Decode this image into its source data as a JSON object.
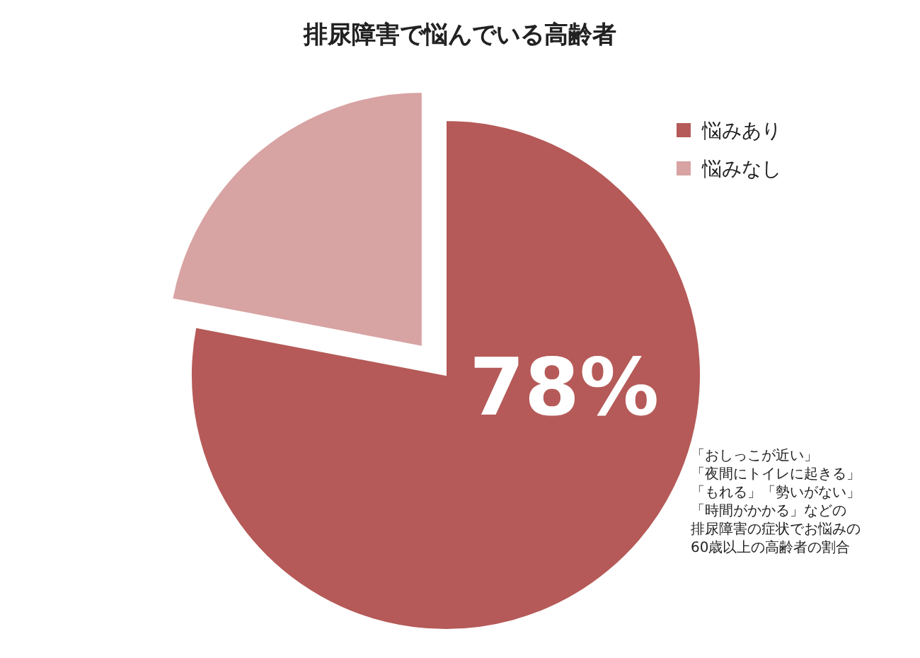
{
  "chart_data": {
    "type": "pie",
    "title": "排尿障害で悩んでいる高齢者",
    "categories": [
      "悩みあり",
      "悩みなし"
    ],
    "values": [
      78,
      22
    ],
    "colors": [
      "#b55a58",
      "#d8a3a3"
    ],
    "value_labels": [
      "78%",
      null
    ],
    "legend": "right",
    "annotations": [
      "「おしっこが近い」",
      "「夜間にトイレに起きる」",
      "「もれる」「勢いがない」",
      "「時間がかかる」などの",
      "排尿障害の症状でお悩みの",
      "60歳以上の高齢者の割合"
    ]
  }
}
